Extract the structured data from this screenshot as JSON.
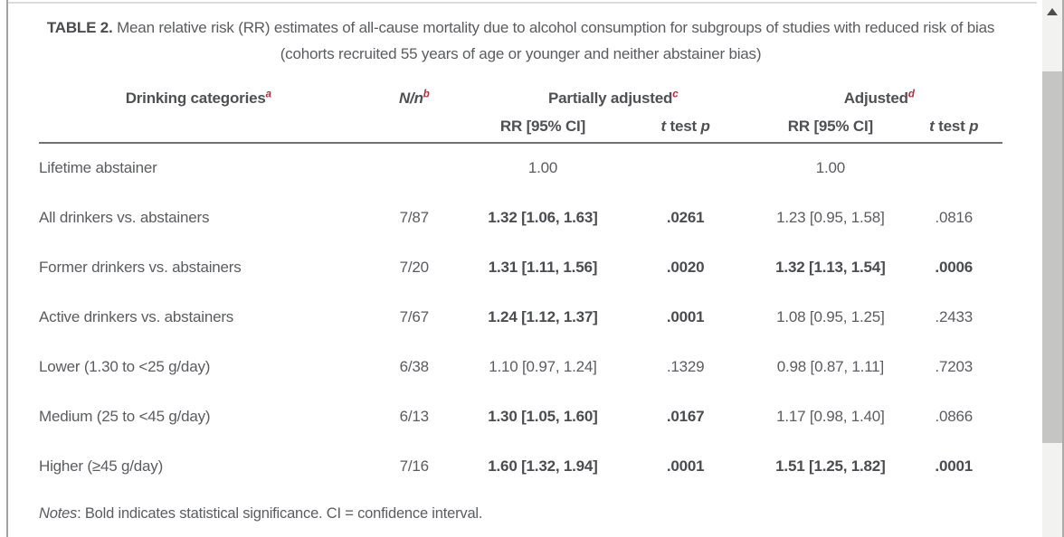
{
  "table": {
    "label": "TABLE 2.",
    "caption": "Mean relative risk (RR) estimates of all-cause mortality due to alcohol consumption for subgroups of studies with reduced risk of bias (cohorts recruited 55 years of age or younger and neither abstainer bias)",
    "header": {
      "drinking_categories": {
        "label": "Drinking categories",
        "sup": "a"
      },
      "n": {
        "label": "N/n",
        "sup": "b"
      },
      "partially_adjusted": {
        "label": "Partially adjusted",
        "sup": "c"
      },
      "adjusted": {
        "label": "Adjusted",
        "sup": "d"
      },
      "rr_ci": "RR [95% CI]",
      "t_test": {
        "t": "t",
        "mid": " test ",
        "p": "p"
      }
    },
    "rows": [
      {
        "category": "Lifetime abstainer",
        "n": "",
        "partial_rr": "1.00",
        "partial_p": "",
        "adjusted_rr": "1.00",
        "adjusted_p": "",
        "sig": {
          "partial_rr": false,
          "partial_p": false,
          "adjusted_rr": false,
          "adjusted_p": false
        }
      },
      {
        "category": "All drinkers vs. abstainers",
        "n": "7/87",
        "partial_rr": "1.32 [1.06, 1.63]",
        "partial_p": ".0261",
        "adjusted_rr": "1.23 [0.95, 1.58]",
        "adjusted_p": ".0816",
        "sig": {
          "partial_rr": true,
          "partial_p": true,
          "adjusted_rr": false,
          "adjusted_p": false
        }
      },
      {
        "category": "Former drinkers vs. abstainers",
        "n": "7/20",
        "partial_rr": "1.31 [1.11, 1.56]",
        "partial_p": ".0020",
        "adjusted_rr": "1.32 [1.13, 1.54]",
        "adjusted_p": ".0006",
        "sig": {
          "partial_rr": true,
          "partial_p": true,
          "adjusted_rr": true,
          "adjusted_p": true
        }
      },
      {
        "category": "Active drinkers vs. abstainers",
        "n": "7/67",
        "partial_rr": "1.24 [1.12, 1.37]",
        "partial_p": ".0001",
        "adjusted_rr": "1.08 [0.95, 1.25]",
        "adjusted_p": ".2433",
        "sig": {
          "partial_rr": true,
          "partial_p": true,
          "adjusted_rr": false,
          "adjusted_p": false
        }
      },
      {
        "category": "Lower (1.30 to <25 g/day)",
        "n": "6/38",
        "partial_rr": "1.10 [0.97, 1.24]",
        "partial_p": ".1329",
        "adjusted_rr": "0.98 [0.87, 1.11]",
        "adjusted_p": ".7203",
        "sig": {
          "partial_rr": false,
          "partial_p": false,
          "adjusted_rr": false,
          "adjusted_p": false
        }
      },
      {
        "category": "Medium (25 to <45 g/day)",
        "n": "6/13",
        "partial_rr": "1.30 [1.05, 1.60]",
        "partial_p": ".0167",
        "adjusted_rr": "1.17 [0.98, 1.40]",
        "adjusted_p": ".0866",
        "sig": {
          "partial_rr": true,
          "partial_p": true,
          "adjusted_rr": false,
          "adjusted_p": false
        }
      },
      {
        "category": "Higher (≥45 g/day)",
        "n": "7/16",
        "partial_rr": "1.60 [1.32, 1.94]",
        "partial_p": ".0001",
        "adjusted_rr": "1.51 [1.25, 1.82]",
        "adjusted_p": ".0001",
        "sig": {
          "partial_rr": true,
          "partial_p": true,
          "adjusted_rr": true,
          "adjusted_p": true
        }
      }
    ]
  },
  "notes": {
    "label": "Notes",
    "text": ": Bold indicates statistical significance. CI = confidence interval."
  },
  "colors": {
    "accent_red": "#b32e3c",
    "text_gray": "#5b5c5f",
    "bold_gray": "#4b4c4f",
    "header_rule": "#717275",
    "scroll_thumb": "#c5c5c4",
    "scroll_track": "#f2f2f1"
  }
}
